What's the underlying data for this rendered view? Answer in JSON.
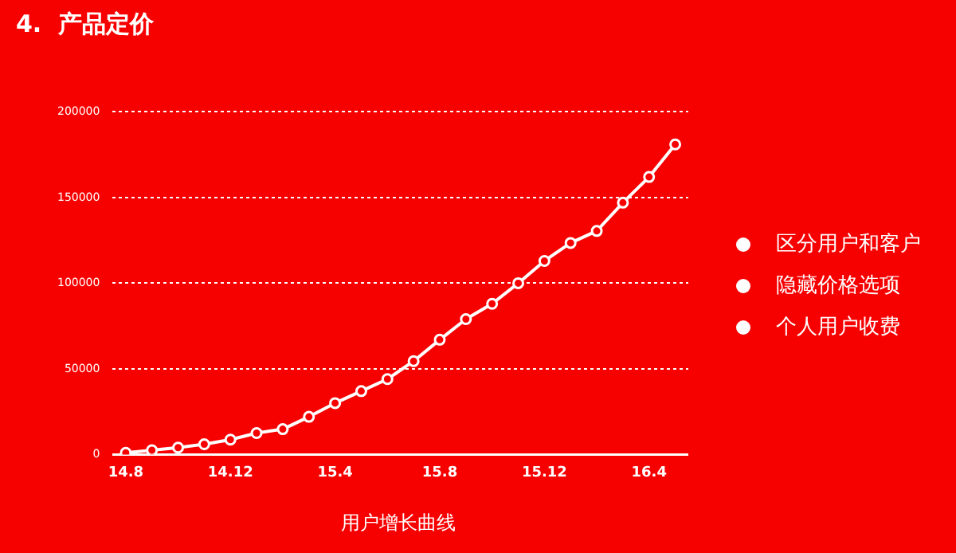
{
  "chart_data": {
    "type": "line",
    "title": "4.  产品定价",
    "xlabel": "用户增长曲线",
    "annotations": [
      "区分用户和客户",
      "隐藏价格选项",
      "个人用户收费"
    ],
    "categories": [
      "14.8",
      null,
      null,
      null,
      "14.12",
      null,
      null,
      null,
      "15.4",
      null,
      null,
      null,
      "15.8",
      null,
      null,
      null,
      "15.12",
      null,
      null,
      null,
      "16.4",
      null
    ],
    "series": [
      {
        "color": "#ffffff",
        "values": [
          1000,
          2500,
          4000,
          6000,
          8700,
          12500,
          14800,
          22000,
          30000,
          37000,
          44000,
          54500,
          67000,
          79000,
          88000,
          100000,
          113000,
          123500,
          130500,
          147000,
          162000,
          181000
        ]
      }
    ],
    "ylim": [
      0,
      200000
    ],
    "yticks": [
      0,
      50000,
      100000,
      150000,
      200000
    ],
    "grid": "y",
    "legend": false,
    "marker": "circle",
    "line_style": "solid"
  }
}
